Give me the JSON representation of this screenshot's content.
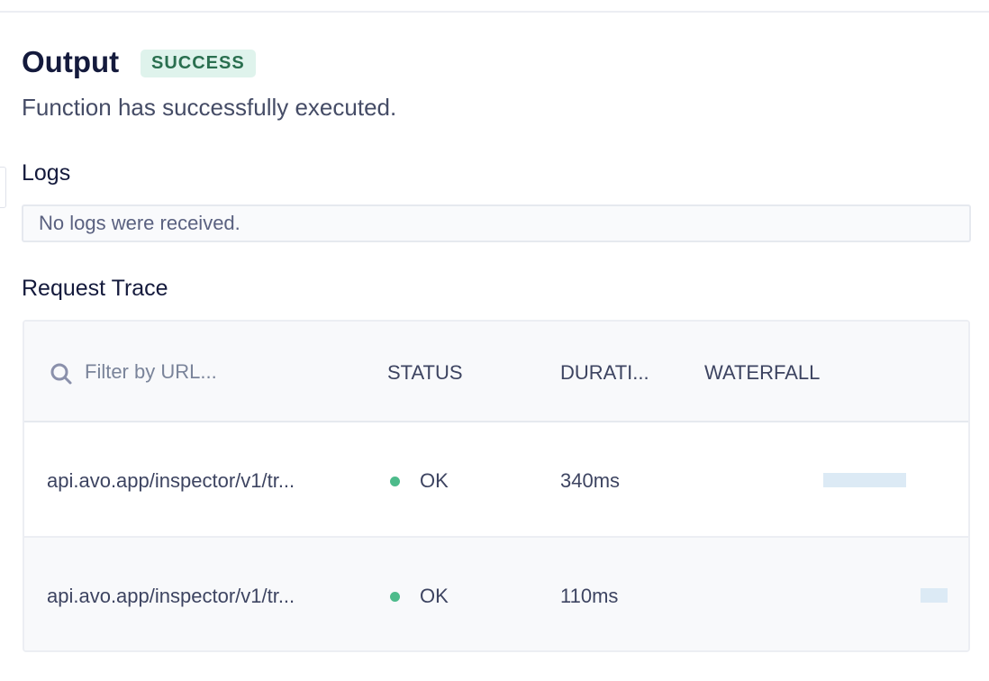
{
  "output": {
    "title": "Output",
    "badge": "SUCCESS",
    "message": "Function has successfully executed."
  },
  "logs": {
    "title": "Logs",
    "empty_message": "No logs were received."
  },
  "trace": {
    "title": "Request Trace",
    "filter_placeholder": "Filter by URL...",
    "columns": {
      "status": "STATUS",
      "duration": "DURATI...",
      "waterfall": "WATERFALL"
    },
    "rows": [
      {
        "url": "api.avo.app/inspector/v1/tr...",
        "status": "OK",
        "duration": "340ms"
      },
      {
        "url": "api.avo.app/inspector/v1/tr...",
        "status": "OK",
        "duration": "110ms"
      }
    ]
  },
  "colors": {
    "success_badge_bg": "#dff3ec",
    "success_badge_text": "#2a6f4f",
    "status_ok": "#4dbb8b",
    "waterfall_bar": "#dceaf5"
  }
}
